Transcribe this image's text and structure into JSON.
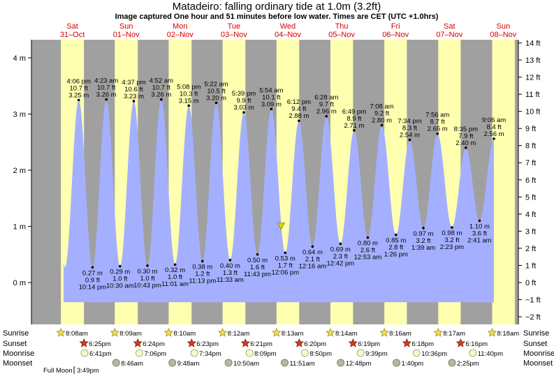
{
  "title": "Matadeiro: falling  ordinary tide at 1.0m (3.2ft)",
  "subtitle": "Image captured One hour and 51 minutes before low water. Times are CET (UTC +1.0hrs)",
  "days": [
    {
      "name": "Sat",
      "date": "31–Oct"
    },
    {
      "name": "Sun",
      "date": "01–Nov"
    },
    {
      "name": "Mon",
      "date": "02–Nov"
    },
    {
      "name": "Tue",
      "date": "03–Nov"
    },
    {
      "name": "Wed",
      "date": "04–Nov"
    },
    {
      "name": "Thu",
      "date": "05–Nov"
    },
    {
      "name": "Fri",
      "date": "06–Nov"
    },
    {
      "name": "Sat",
      "date": "07–Nov"
    },
    {
      "name": "Sun",
      "date": "08–Nov"
    }
  ],
  "rows": {
    "sunrise_label": "Sunrise",
    "sunset_label": "Sunset",
    "moonrise_label": "Moonrise",
    "moonset_label": "Moonset"
  },
  "sunrise": [
    "8:08am",
    "8:09am",
    "8:10am",
    "8:12am",
    "8:13am",
    "8:14am",
    "8:16am",
    "8:17am",
    "8:18am"
  ],
  "sunset": [
    "6:25pm",
    "6:24pm",
    "6:23pm",
    "6:21pm",
    "6:20pm",
    "6:19pm",
    "6:18pm",
    "6:16pm"
  ],
  "moonrise": [
    "6:41pm",
    "7:06pm",
    "7:34pm",
    "8:09pm",
    "8:50pm",
    "9:39pm",
    "10:36pm",
    "11:40pm"
  ],
  "moonset": [
    "8:46am",
    "9:48am",
    "10:50am",
    "11:51am",
    "12:48pm",
    "1:40pm",
    "2:25pm"
  ],
  "moon_phase": {
    "label": "Full Moon",
    "time": "3:49pm"
  },
  "colors": {
    "night": "#a0a0a0",
    "day": "#ffffb0",
    "water": "#a4b0ff",
    "day_name": "#d40000",
    "current_marker": "#e6d400"
  },
  "chart_data": {
    "type": "area",
    "y_unit_left": "m",
    "y_unit_right": "ft",
    "ylim_m": [
      -0.6,
      4.35
    ],
    "yticks_m": [
      "4 m",
      "3 m",
      "2 m",
      "1 m",
      "0 m"
    ],
    "yticks_ft": [
      "14 ft",
      "13 ft",
      "12 ft",
      "11 ft",
      "10 ft",
      "9 ft",
      "8 ft",
      "7 ft",
      "6 ft",
      "5 ft",
      "4 ft",
      "3 ft",
      "2 ft",
      "1 ft",
      "0 ft",
      "−1 ft",
      "−2 ft"
    ],
    "current": {
      "height_m": 1.0
    },
    "tides": [
      {
        "type": "high",
        "time": "4:06 pm",
        "height_m": 3.25,
        "label_ft": "10.7 ft",
        "label_m": "3.25 m"
      },
      {
        "type": "low",
        "time": "10:14 pm",
        "height_m": 0.27,
        "label_ft": "0.9 ft",
        "label_m": "0.27 m"
      },
      {
        "type": "high",
        "time": "4:23 am",
        "height_m": 3.26,
        "label_ft": "10.7 ft",
        "label_m": "3.26 m"
      },
      {
        "type": "low",
        "time": "10:30 am",
        "height_m": 0.29,
        "label_ft": "1.0 ft",
        "label_m": "0.29 m"
      },
      {
        "type": "high",
        "time": "4:37 pm",
        "height_m": 3.23,
        "label_ft": "10.6 ft",
        "label_m": "3.23 m"
      },
      {
        "type": "low",
        "time": "10:43 pm",
        "height_m": 0.3,
        "label_ft": "1.0 ft",
        "label_m": "0.30 m"
      },
      {
        "type": "high",
        "time": "4:52 am",
        "height_m": 3.26,
        "label_ft": "10.7 ft",
        "label_m": "3.26 m"
      },
      {
        "type": "low",
        "time": "11:01 am",
        "height_m": 0.32,
        "label_ft": "1.0 ft",
        "label_m": "0.32 m"
      },
      {
        "type": "high",
        "time": "5:08 pm",
        "height_m": 3.15,
        "label_ft": "10.3 ft",
        "label_m": "3.15 m"
      },
      {
        "type": "low",
        "time": "11:13 pm",
        "height_m": 0.38,
        "label_ft": "1.2 ft",
        "label_m": "0.38 m"
      },
      {
        "type": "high",
        "time": "5:22 am",
        "height_m": 3.2,
        "label_ft": "10.5 ft",
        "label_m": "3.20 m"
      },
      {
        "type": "low",
        "time": "11:33 am",
        "height_m": 0.4,
        "label_ft": "1.3 ft",
        "label_m": "0.40 m"
      },
      {
        "type": "high",
        "time": "5:39 pm",
        "height_m": 3.03,
        "label_ft": "9.9 ft",
        "label_m": "3.03 m"
      },
      {
        "type": "low",
        "time": "11:43 pm",
        "height_m": 0.5,
        "label_ft": "1.6 ft",
        "label_m": "0.50 m"
      },
      {
        "type": "high",
        "time": "5:54 am",
        "height_m": 3.09,
        "label_ft": "10.1 ft",
        "label_m": "3.09 m"
      },
      {
        "type": "low",
        "time": "12:06 pm",
        "height_m": 0.53,
        "label_ft": "1.7 ft",
        "label_m": "0.53 m"
      },
      {
        "type": "high",
        "time": "6:12 pm",
        "height_m": 2.88,
        "label_ft": "9.4 ft",
        "label_m": "2.88 m"
      },
      {
        "type": "low",
        "time": "12:16 am",
        "height_m": 0.64,
        "label_ft": "2.1 ft",
        "label_m": "0.64 m"
      },
      {
        "type": "high",
        "time": "6:28 am",
        "height_m": 2.96,
        "label_ft": "9.7 ft",
        "label_m": "2.96 m"
      },
      {
        "type": "low",
        "time": "12:42 pm",
        "height_m": 0.69,
        "label_ft": "2.3 ft",
        "label_m": "0.69 m"
      },
      {
        "type": "high",
        "time": "6:49 pm",
        "height_m": 2.71,
        "label_ft": "8.9 ft",
        "label_m": "2.71 m"
      },
      {
        "type": "low",
        "time": "12:53 am",
        "height_m": 0.8,
        "label_ft": "2.6 ft",
        "label_m": "0.80 m"
      },
      {
        "type": "high",
        "time": "7:08 am",
        "height_m": 2.8,
        "label_ft": "9.2 ft",
        "label_m": "2.80 m"
      },
      {
        "type": "low",
        "time": "1:26 pm",
        "height_m": 0.85,
        "label_ft": "2.8 ft",
        "label_m": "0.85 m"
      },
      {
        "type": "high",
        "time": "7:34 pm",
        "height_m": 2.54,
        "label_ft": "8.3 ft",
        "label_m": "2.54 m"
      },
      {
        "type": "low",
        "time": "1:39 am",
        "height_m": 0.97,
        "label_ft": "3.2 ft",
        "label_m": "0.97 m"
      },
      {
        "type": "high",
        "time": "7:56 am",
        "height_m": 2.65,
        "label_ft": "8.7 ft",
        "label_m": "2.65 m"
      },
      {
        "type": "low",
        "time": "2:23 pm",
        "height_m": 0.98,
        "label_ft": "3.2 ft",
        "label_m": "0.98 m"
      },
      {
        "type": "high",
        "time": "8:35 pm",
        "height_m": 2.4,
        "label_ft": "7.9 ft",
        "label_m": "2.40 m"
      },
      {
        "type": "low",
        "time": "2:41 am",
        "height_m": 1.1,
        "label_ft": "3.6 ft",
        "label_m": "1.10 m"
      },
      {
        "type": "high",
        "time": "9:06 am",
        "height_m": 2.56,
        "label_ft": "8.4 ft",
        "label_m": "2.56 m"
      }
    ]
  }
}
